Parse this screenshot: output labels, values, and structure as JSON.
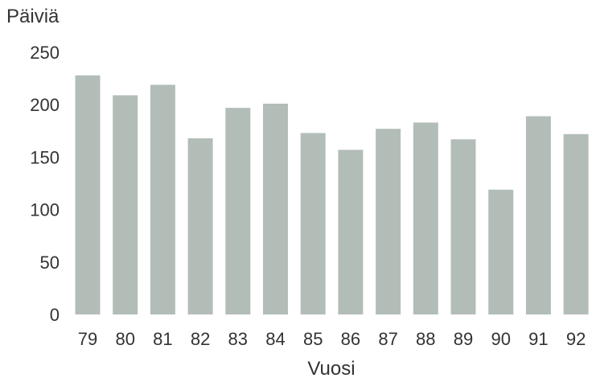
{
  "chart_data": {
    "type": "bar",
    "title": "",
    "ylabel": "Päiviä",
    "xlabel": "Vuosi",
    "categories": [
      "79",
      "80",
      "81",
      "82",
      "83",
      "84",
      "85",
      "86",
      "87",
      "88",
      "89",
      "90",
      "91",
      "92"
    ],
    "values": [
      228,
      209,
      219,
      168,
      197,
      201,
      173,
      157,
      177,
      183,
      167,
      119,
      189,
      172
    ],
    "ylim": [
      0,
      250
    ],
    "yticks": [
      0,
      50,
      100,
      150,
      200,
      250
    ],
    "grid": false,
    "legend": "none",
    "colors": {
      "bar": "#b3bdb8",
      "text": "#333333"
    }
  }
}
